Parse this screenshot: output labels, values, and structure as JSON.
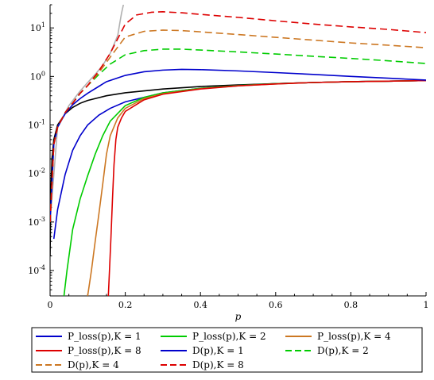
{
  "chart_data": {
    "type": "line",
    "x_axis": {
      "label": "p",
      "range": [
        0,
        1
      ],
      "ticks": [
        0,
        0.2,
        0.4,
        0.6,
        0.8,
        1
      ],
      "tick_labels": [
        "0",
        "0.2",
        "0.4",
        "0.6",
        "0.8",
        "1"
      ]
    },
    "y_axis": {
      "scale": "log",
      "range": [
        3e-05,
        30
      ],
      "ticks": [
        0.0001,
        0.001,
        0.01,
        0.1,
        1,
        10
      ],
      "tick_labels": [
        {
          "base": "10",
          "exp": "-4"
        },
        {
          "base": "10",
          "exp": "-3"
        },
        {
          "base": "10",
          "exp": "-2"
        },
        {
          "base": "10",
          "exp": "-1"
        },
        {
          "base": "10",
          "exp": "0"
        },
        {
          "base": "10",
          "exp": "1"
        }
      ]
    },
    "legend_position": "bottom",
    "series": [
      {
        "name": "P_loss(p),K = 1",
        "color": "#0000cc",
        "dash": "solid",
        "points": [
          [
            0.01,
            0.00045
          ],
          [
            0.02,
            0.0018
          ],
          [
            0.04,
            0.0095
          ],
          [
            0.06,
            0.03
          ],
          [
            0.08,
            0.06
          ],
          [
            0.1,
            0.1
          ],
          [
            0.13,
            0.16
          ],
          [
            0.16,
            0.22
          ],
          [
            0.2,
            0.3
          ],
          [
            0.3,
            0.46
          ],
          [
            0.4,
            0.57
          ],
          [
            0.5,
            0.65
          ],
          [
            0.6,
            0.71
          ],
          [
            0.7,
            0.75
          ],
          [
            0.8,
            0.78
          ],
          [
            0.9,
            0.8
          ],
          [
            1.0,
            0.82
          ]
        ]
      },
      {
        "name": "P_loss(p),K = 2",
        "color": "#00cc00",
        "dash": "solid",
        "points": [
          [
            0.037,
            3e-05
          ],
          [
            0.045,
            0.0001
          ],
          [
            0.06,
            0.0007
          ],
          [
            0.08,
            0.003
          ],
          [
            0.1,
            0.009
          ],
          [
            0.12,
            0.025
          ],
          [
            0.14,
            0.06
          ],
          [
            0.16,
            0.12
          ],
          [
            0.2,
            0.25
          ],
          [
            0.25,
            0.37
          ],
          [
            0.3,
            0.46
          ],
          [
            0.4,
            0.57
          ],
          [
            0.5,
            0.65
          ],
          [
            0.6,
            0.71
          ],
          [
            0.7,
            0.75
          ],
          [
            0.8,
            0.78
          ],
          [
            0.9,
            0.8
          ],
          [
            1.0,
            0.82
          ]
        ]
      },
      {
        "name": "P_loss(p),K = 4",
        "color": "#cc7722",
        "dash": "solid",
        "points": [
          [
            0.1,
            3e-05
          ],
          [
            0.11,
            0.0001
          ],
          [
            0.12,
            0.0004
          ],
          [
            0.13,
            0.0015
          ],
          [
            0.14,
            0.006
          ],
          [
            0.15,
            0.025
          ],
          [
            0.16,
            0.06
          ],
          [
            0.18,
            0.14
          ],
          [
            0.2,
            0.22
          ],
          [
            0.25,
            0.35
          ],
          [
            0.3,
            0.44
          ],
          [
            0.4,
            0.56
          ],
          [
            0.5,
            0.64
          ],
          [
            0.6,
            0.7
          ],
          [
            0.7,
            0.75
          ],
          [
            0.8,
            0.78
          ],
          [
            0.9,
            0.8
          ],
          [
            1.0,
            0.82
          ]
        ]
      },
      {
        "name": "P_loss(p),K = 8",
        "color": "#dd0000",
        "dash": "solid",
        "points": [
          [
            0.155,
            3e-05
          ],
          [
            0.158,
            0.0001
          ],
          [
            0.162,
            0.0005
          ],
          [
            0.166,
            0.003
          ],
          [
            0.17,
            0.015
          ],
          [
            0.175,
            0.05
          ],
          [
            0.18,
            0.09
          ],
          [
            0.19,
            0.14
          ],
          [
            0.2,
            0.19
          ],
          [
            0.25,
            0.33
          ],
          [
            0.3,
            0.43
          ],
          [
            0.4,
            0.55
          ],
          [
            0.5,
            0.64
          ],
          [
            0.6,
            0.7
          ],
          [
            0.7,
            0.75
          ],
          [
            0.8,
            0.78
          ],
          [
            0.9,
            0.8
          ],
          [
            1.0,
            0.82
          ]
        ]
      },
      {
        "name": "D(p),K = 1",
        "color": "#0000cc",
        "dash": "solid",
        "points": [
          [
            0.0,
            0.001
          ],
          [
            0.01,
            0.04
          ],
          [
            0.02,
            0.09
          ],
          [
            0.04,
            0.17
          ],
          [
            0.06,
            0.26
          ],
          [
            0.08,
            0.35
          ],
          [
            0.1,
            0.45
          ],
          [
            0.15,
            0.78
          ],
          [
            0.2,
            1.05
          ],
          [
            0.25,
            1.25
          ],
          [
            0.3,
            1.35
          ],
          [
            0.35,
            1.4
          ],
          [
            0.4,
            1.38
          ],
          [
            0.5,
            1.3
          ],
          [
            0.6,
            1.2
          ],
          [
            0.7,
            1.1
          ],
          [
            0.8,
            1.0
          ],
          [
            0.9,
            0.92
          ],
          [
            1.0,
            0.84
          ]
        ]
      },
      {
        "name": "D(p),K = 2",
        "color": "#00cc00",
        "dash": "dashed",
        "points": [
          [
            0.0,
            0.001
          ],
          [
            0.01,
            0.04
          ],
          [
            0.02,
            0.09
          ],
          [
            0.04,
            0.18
          ],
          [
            0.06,
            0.28
          ],
          [
            0.08,
            0.45
          ],
          [
            0.1,
            0.65
          ],
          [
            0.13,
            1.1
          ],
          [
            0.16,
            1.8
          ],
          [
            0.2,
            2.8
          ],
          [
            0.25,
            3.4
          ],
          [
            0.3,
            3.65
          ],
          [
            0.35,
            3.65
          ],
          [
            0.4,
            3.5
          ],
          [
            0.5,
            3.2
          ],
          [
            0.6,
            2.9
          ],
          [
            0.7,
            2.6
          ],
          [
            0.8,
            2.35
          ],
          [
            0.9,
            2.1
          ],
          [
            1.0,
            1.85
          ]
        ]
      },
      {
        "name": "D(p),K = 4",
        "color": "#cc7722",
        "dash": "dashed",
        "points": [
          [
            0.0,
            0.001
          ],
          [
            0.01,
            0.04
          ],
          [
            0.02,
            0.09
          ],
          [
            0.04,
            0.18
          ],
          [
            0.06,
            0.28
          ],
          [
            0.08,
            0.45
          ],
          [
            0.1,
            0.65
          ],
          [
            0.13,
            1.2
          ],
          [
            0.16,
            2.5
          ],
          [
            0.2,
            6.5
          ],
          [
            0.25,
            8.5
          ],
          [
            0.3,
            9.0
          ],
          [
            0.35,
            8.8
          ],
          [
            0.4,
            8.3
          ],
          [
            0.5,
            7.3
          ],
          [
            0.6,
            6.4
          ],
          [
            0.7,
            5.6
          ],
          [
            0.8,
            4.9
          ],
          [
            0.9,
            4.4
          ],
          [
            1.0,
            3.9
          ]
        ]
      },
      {
        "name": "D(p),K = 8",
        "color": "#dd0000",
        "dash": "dashed",
        "points": [
          [
            0.0,
            0.001
          ],
          [
            0.01,
            0.04
          ],
          [
            0.02,
            0.09
          ],
          [
            0.04,
            0.18
          ],
          [
            0.06,
            0.28
          ],
          [
            0.08,
            0.45
          ],
          [
            0.1,
            0.65
          ],
          [
            0.13,
            1.3
          ],
          [
            0.16,
            3.0
          ],
          [
            0.18,
            6.0
          ],
          [
            0.2,
            12.0
          ],
          [
            0.23,
            18.5
          ],
          [
            0.27,
            21.0
          ],
          [
            0.3,
            21.5
          ],
          [
            0.35,
            20.5
          ],
          [
            0.4,
            19.0
          ],
          [
            0.5,
            16.5
          ],
          [
            0.6,
            14.0
          ],
          [
            0.7,
            12.0
          ],
          [
            0.8,
            10.5
          ],
          [
            0.9,
            9.3
          ],
          [
            1.0,
            8.0
          ]
        ]
      }
    ],
    "unlabeled_curves": [
      {
        "color": "#000000",
        "dash": "solid",
        "points": [
          [
            0.0,
            0.0002
          ],
          [
            0.002,
            0.004
          ],
          [
            0.005,
            0.02
          ],
          [
            0.01,
            0.05
          ],
          [
            0.02,
            0.1
          ],
          [
            0.04,
            0.17
          ],
          [
            0.06,
            0.23
          ],
          [
            0.08,
            0.28
          ],
          [
            0.1,
            0.32
          ],
          [
            0.15,
            0.4
          ],
          [
            0.2,
            0.46
          ],
          [
            0.3,
            0.55
          ],
          [
            0.4,
            0.62
          ],
          [
            0.5,
            0.67
          ],
          [
            0.6,
            0.71
          ],
          [
            0.7,
            0.75
          ],
          [
            0.8,
            0.78
          ],
          [
            0.9,
            0.8
          ],
          [
            1.0,
            0.82
          ]
        ]
      },
      {
        "color": "#b0b0b0",
        "dash": "solid",
        "points": [
          [
            0.0,
            0.001
          ],
          [
            0.02,
            0.09
          ],
          [
            0.05,
            0.25
          ],
          [
            0.08,
            0.5
          ],
          [
            0.1,
            0.75
          ],
          [
            0.12,
            1.1
          ],
          [
            0.14,
            1.7
          ],
          [
            0.16,
            3.0
          ],
          [
            0.18,
            7.0
          ],
          [
            0.185,
            12.0
          ],
          [
            0.19,
            20.0
          ],
          [
            0.195,
            30.0
          ]
        ]
      }
    ]
  }
}
